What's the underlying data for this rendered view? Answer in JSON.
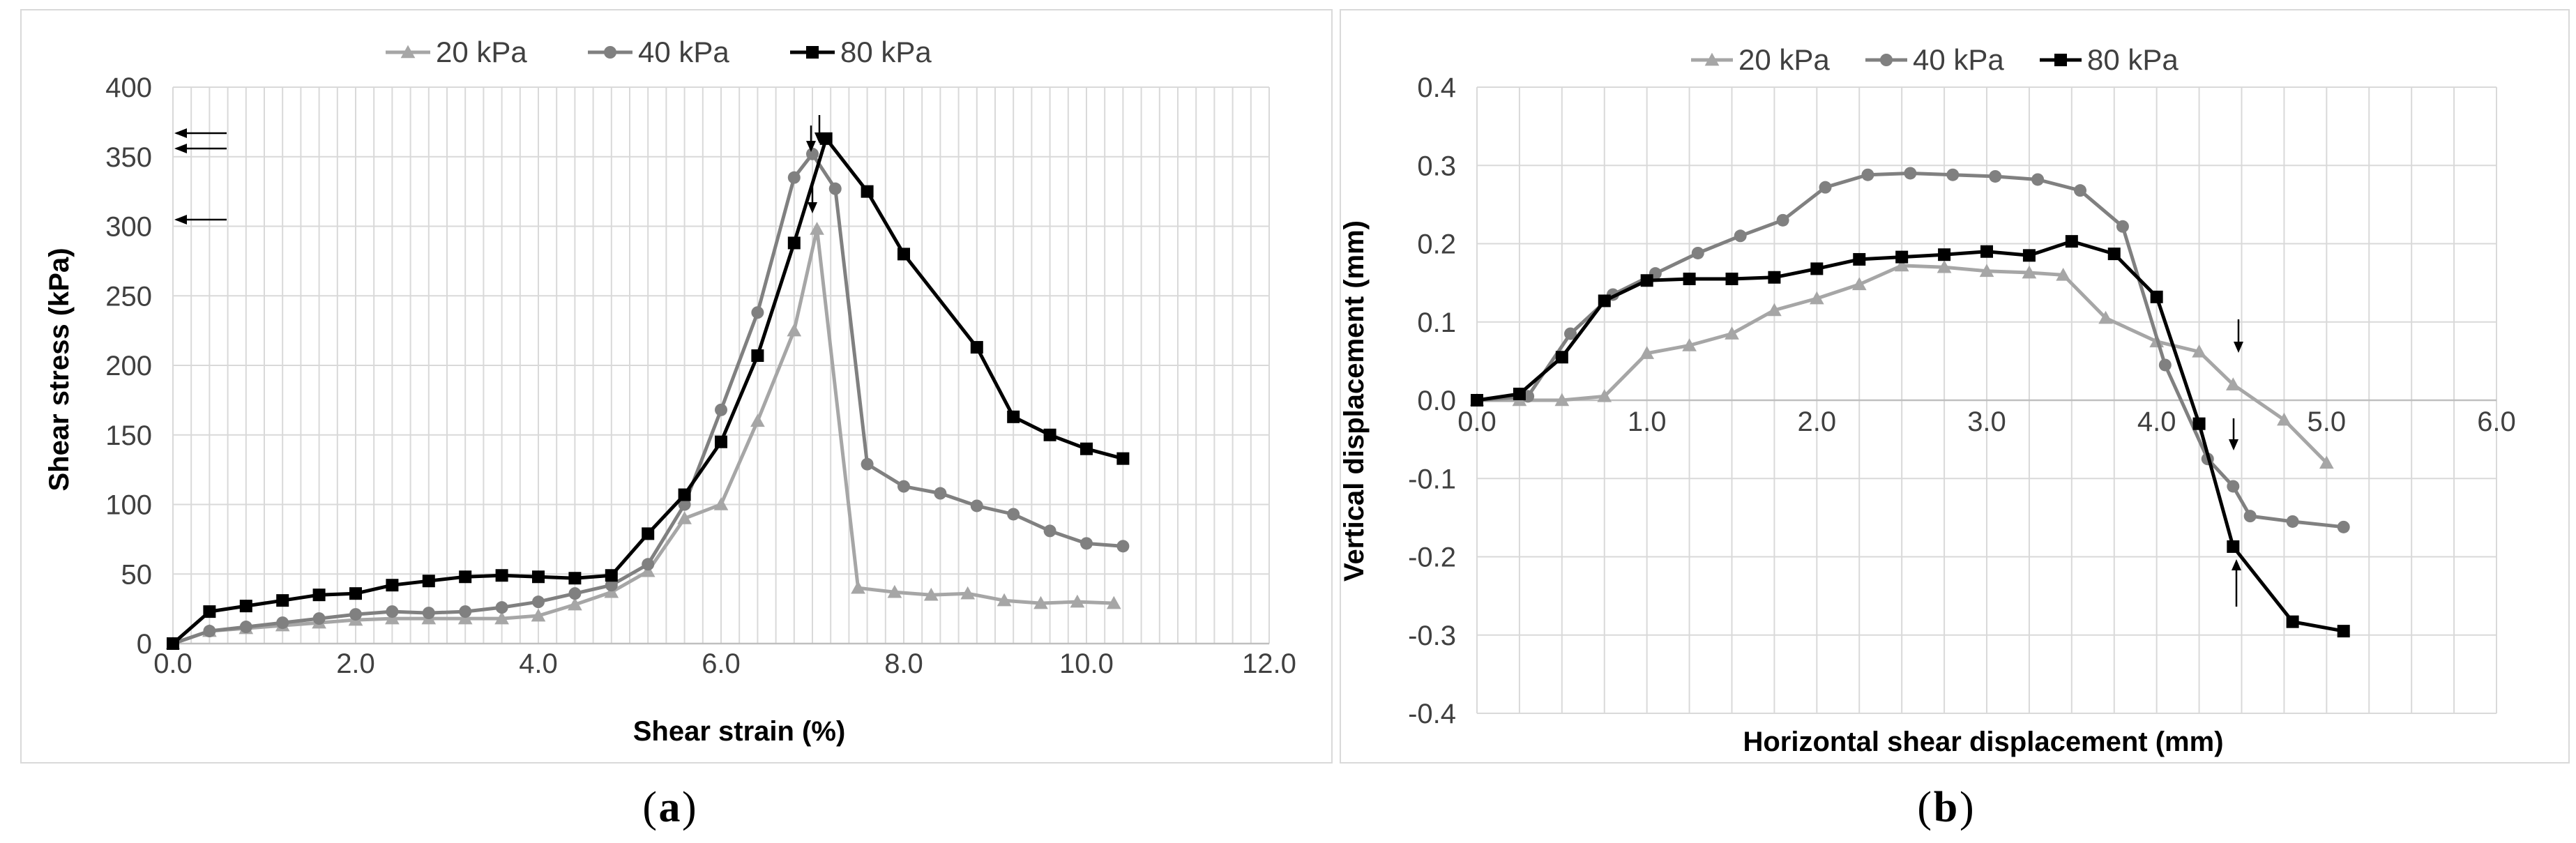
{
  "chart_data": [
    {
      "type": "line",
      "caption_label": "a",
      "xlabel": "Shear strain (%)",
      "ylabel": "Shear stress (kPa)",
      "xlim": [
        0,
        12
      ],
      "ylim": [
        0,
        400
      ],
      "x_ticks": [
        "0.0",
        "2.0",
        "4.0",
        "6.0",
        "8.0",
        "10.0",
        "12.0"
      ],
      "y_ticks": [
        "0",
        "50",
        "100",
        "150",
        "200",
        "250",
        "300",
        "350",
        "400"
      ],
      "legend_position": "top",
      "grid": true,
      "series": [
        {
          "name": "20 kPa",
          "color": "#a6a6a6",
          "marker": "triangle",
          "x": [
            0.0,
            0.4,
            0.8,
            1.2,
            1.6,
            2.0,
            2.4,
            2.8,
            3.2,
            3.6,
            4.0,
            4.4,
            4.8,
            5.2,
            5.6,
            6.0,
            6.4,
            6.8,
            7.05,
            7.5,
            7.9,
            8.3,
            8.7,
            9.1,
            9.5,
            9.9,
            10.3
          ],
          "y": [
            0,
            9,
            11,
            13,
            15,
            17,
            18,
            18,
            18,
            18,
            20,
            28,
            37,
            52,
            90,
            100,
            160,
            225,
            298,
            40,
            37,
            35,
            36,
            31,
            29,
            30,
            29
          ]
        },
        {
          "name": "40 kPa",
          "color": "#808080",
          "marker": "circle",
          "x": [
            0.0,
            0.4,
            0.8,
            1.2,
            1.6,
            2.0,
            2.4,
            2.8,
            3.2,
            3.6,
            4.0,
            4.4,
            4.8,
            5.2,
            5.6,
            6.0,
            6.4,
            6.8,
            7.0,
            7.25,
            7.6,
            8.0,
            8.4,
            8.8,
            9.2,
            9.6,
            10.0,
            10.4
          ],
          "y": [
            0,
            9,
            12,
            15,
            18,
            21,
            23,
            22,
            23,
            26,
            30,
            36,
            42,
            57,
            100,
            168,
            238,
            335,
            352,
            327,
            129,
            113,
            108,
            99,
            93,
            81,
            72,
            70
          ]
        },
        {
          "name": "80 kPa",
          "color": "#000000",
          "marker": "square",
          "x": [
            0.0,
            0.4,
            0.8,
            1.2,
            1.6,
            2.0,
            2.4,
            2.8,
            3.2,
            3.6,
            4.0,
            4.4,
            4.8,
            5.2,
            5.6,
            6.0,
            6.4,
            6.8,
            7.15,
            7.6,
            8.0,
            8.8,
            9.2,
            9.6,
            10.0,
            10.4
          ],
          "y": [
            0,
            23,
            27,
            31,
            35,
            36,
            42,
            45,
            48,
            49,
            48,
            47,
            49,
            79,
            107,
            145,
            207,
            288,
            363,
            325,
            280,
            213,
            163,
            150,
            140,
            133
          ]
        }
      ]
    },
    {
      "type": "line",
      "caption_label": "b",
      "xlabel": "Horizontal shear displacement (mm)",
      "ylabel": "Vertical displacement (mm)",
      "xlim": [
        0,
        6
      ],
      "ylim": [
        -0.4,
        0.4
      ],
      "x_ticks": [
        "0.0",
        "1.0",
        "2.0",
        "3.0",
        "4.0",
        "5.0",
        "6.0"
      ],
      "y_ticks": [
        "0.4",
        "0.3",
        "0.2",
        "0.1",
        "0.0",
        "-0.1",
        "-0.2",
        "-0.3",
        "-0.4"
      ],
      "legend_position": "top",
      "grid": true,
      "series": [
        {
          "name": "20 kPa",
          "color": "#a6a6a6",
          "marker": "triangle",
          "x": [
            0.0,
            0.25,
            0.5,
            0.75,
            1.0,
            1.25,
            1.5,
            1.75,
            2.0,
            2.25,
            2.5,
            2.75,
            3.0,
            3.25,
            3.45,
            3.7,
            4.0,
            4.25,
            4.45,
            4.75,
            5.0
          ],
          "y": [
            0.0,
            0.0,
            0.0,
            0.005,
            0.06,
            0.07,
            0.085,
            0.115,
            0.13,
            0.148,
            0.172,
            0.17,
            0.165,
            0.163,
            0.16,
            0.105,
            0.075,
            0.062,
            0.02,
            -0.025,
            -0.08
          ]
        },
        {
          "name": "40 kPa",
          "color": "#808080",
          "marker": "circle",
          "x": [
            0.0,
            0.3,
            0.55,
            0.8,
            1.05,
            1.3,
            1.55,
            1.8,
            2.05,
            2.3,
            2.55,
            2.8,
            3.05,
            3.3,
            3.55,
            3.8,
            4.05,
            4.3,
            4.45,
            4.55,
            4.8,
            5.1
          ],
          "y": [
            0.0,
            0.005,
            0.085,
            0.135,
            0.162,
            0.188,
            0.21,
            0.23,
            0.272,
            0.288,
            0.29,
            0.288,
            0.286,
            0.282,
            0.268,
            0.222,
            0.045,
            -0.075,
            -0.11,
            -0.148,
            -0.155,
            -0.162
          ]
        },
        {
          "name": "80 kPa",
          "color": "#000000",
          "marker": "square",
          "x": [
            0.0,
            0.25,
            0.5,
            0.75,
            1.0,
            1.25,
            1.5,
            1.75,
            2.0,
            2.25,
            2.5,
            2.75,
            3.0,
            3.25,
            3.5,
            3.75,
            4.0,
            4.25,
            4.45,
            4.8,
            5.1
          ],
          "y": [
            0.0,
            0.008,
            0.055,
            0.127,
            0.153,
            0.155,
            0.155,
            0.157,
            0.168,
            0.18,
            0.183,
            0.186,
            0.19,
            0.185,
            0.203,
            0.187,
            0.132,
            -0.03,
            -0.187,
            -0.283,
            -0.295
          ]
        }
      ]
    }
  ]
}
